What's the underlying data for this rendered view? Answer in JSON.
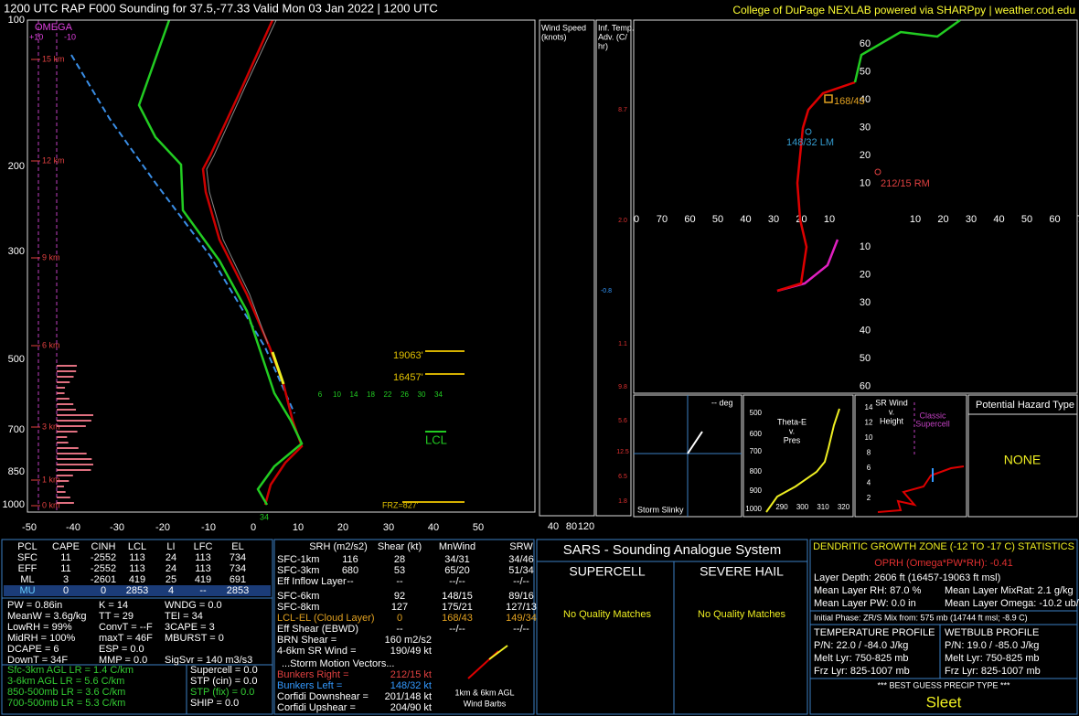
{
  "header": {
    "title": "1200 UTC RAP F000 Sounding for 37.5,-77.33  Valid  Mon 03 Jan 2022 | 1200 UTC",
    "credit": "College of DuPage NEXLAB powered via SHARPpy | weather.cod.edu"
  },
  "skewt": {
    "pressure_labels": [
      "100",
      "200",
      "300",
      "500",
      "700",
      "850",
      "1000"
    ],
    "temp_labels": [
      "-50",
      "-40",
      "-30",
      "-20",
      "-10",
      "0",
      "10",
      "20",
      "30",
      "40",
      "50"
    ],
    "height_labels": [
      "15 km",
      "12 km",
      "9 km",
      "6 km",
      "3 km",
      "1 km",
      "0 km"
    ],
    "omega": [
      "OMEGA",
      "+10",
      "-10"
    ],
    "mixing_ratio_labels": [
      "6",
      "10",
      "14",
      "18",
      "22",
      "26",
      "30",
      "34"
    ],
    "annotations": {
      "dgz_top": "19063'",
      "dgz_bottom": "16457'",
      "lcl": "LCL",
      "frz": "FRZ=827'",
      "sfc_wetbulb": "34"
    }
  },
  "wind_speed": {
    "title": [
      "Wind Speed",
      "(knots)"
    ],
    "ticks": [
      "40",
      "80",
      "120"
    ]
  },
  "inference": {
    "title": [
      "Inf. Temp.",
      "Adv. (C/",
      "hr)"
    ],
    "labels": [
      "8.7",
      "2.0",
      "-0.8",
      "1.1",
      "9.8",
      "5.6",
      "12.5",
      "6.5",
      "1.8"
    ]
  },
  "hodograph": {
    "ring_labels": [
      "60",
      "50",
      "40",
      "30",
      "20",
      "10"
    ],
    "lower_ring_labels": [
      "10",
      "20",
      "30",
      "40",
      "50",
      "60"
    ],
    "x_labels": [
      "0",
      "70",
      "60",
      "50",
      "40",
      "30",
      "20",
      "10",
      "10",
      "20",
      "30",
      "40",
      "50",
      "60",
      "70"
    ],
    "motions": {
      "mean": "168/43",
      "left": "148/32 LM",
      "right": "212/15 RM"
    }
  },
  "slinky": {
    "deg": "-- deg",
    "title": "Storm Slinky"
  },
  "theta": {
    "title": [
      "Theta-E",
      "v.",
      "Pres"
    ],
    "y_labels": [
      "500",
      "600",
      "700",
      "800",
      "900",
      "1000"
    ],
    "x_labels": [
      "290",
      "300",
      "310",
      "320"
    ]
  },
  "srwind": {
    "title": [
      "SR Wind",
      "v.",
      "Height"
    ],
    "note": [
      "Classic",
      "Supercell"
    ],
    "heights": [
      "14",
      "12",
      "10",
      "8",
      "6",
      "4",
      "2"
    ]
  },
  "hazard": {
    "title": "Potential Hazard Type",
    "value": "NONE"
  },
  "parcels": {
    "headers": [
      "PCL",
      "CAPE",
      "CINH",
      "LCL",
      "LI",
      "LFC",
      "EL"
    ],
    "rows": [
      [
        "SFC",
        "11",
        "-2552",
        "113",
        "24",
        "113",
        "734"
      ],
      [
        "EFF",
        "11",
        "-2552",
        "113",
        "24",
        "113",
        "734"
      ],
      [
        "ML",
        "3",
        "-2601",
        "419",
        "25",
        "419",
        "691"
      ],
      [
        "MU",
        "0",
        "0",
        "2853",
        "4",
        "--",
        "2853"
      ]
    ]
  },
  "indices": [
    [
      "PW = 0.86in",
      "K = 14",
      "WNDG = 0.0"
    ],
    [
      "MeanW = 3.6g/kg",
      "TT = 29",
      "TEI = 34"
    ],
    [
      "LowRH = 99%",
      "ConvT = --F",
      "3CAPE = 3"
    ],
    [
      "MidRH = 100%",
      "maxT = 46F",
      "MBURST = 0"
    ],
    [
      "DCAPE = 6",
      "ESP = 0.0"
    ],
    [
      "DownT = 34F",
      "MMP = 0.0",
      "SigSvr = 140 m3/s3"
    ]
  ],
  "lapse_rates": [
    "Sfc-3km AGL LR = 1.4 C/km",
    "3-6km AGL LR = 5.6 C/km",
    "850-500mb LR = 3.6 C/km",
    "700-500mb LR = 5.3 C/km"
  ],
  "composites": [
    "Supercell = 0.0",
    "STP (cin) = 0.0",
    "STP (fix) = 0.0",
    "SHIP = 0.0"
  ],
  "kinematics": {
    "headers": [
      "SRH (m2/s2)",
      "Shear (kt)",
      "MnWind",
      "SRW"
    ],
    "rows": [
      [
        "SFC-1km",
        "116",
        "28",
        "34/31",
        "34/46"
      ],
      [
        "SFC-3km",
        "680",
        "53",
        "65/20",
        "51/34"
      ],
      [
        "Eff Inflow Layer",
        "--",
        "--",
        "--/--",
        "--/--"
      ],
      [
        "SFC-6km",
        null,
        "92",
        "148/15",
        "89/16"
      ],
      [
        "SFC-8km",
        null,
        "127",
        "175/21",
        "127/13"
      ],
      [
        "LCL-EL (Cloud Layer)",
        null,
        "0",
        "168/43",
        "149/34"
      ],
      [
        "Eff Shear (EBWD)",
        null,
        "--",
        "--/--",
        "--/--"
      ]
    ],
    "pairs": [
      [
        "BRN Shear =",
        "160 m2/s2"
      ],
      [
        "4-6km SR Wind =",
        "190/49 kt"
      ]
    ],
    "motion_title": "...Storm Motion Vectors...",
    "motions": [
      [
        "Bunkers Right =",
        "212/15 kt"
      ],
      [
        "Bunkers Left =",
        "148/32 kt"
      ],
      [
        "Corfidi Downshear =",
        "201/148 kt"
      ],
      [
        "Corfidi Upshear =",
        "204/90 kt"
      ]
    ],
    "barb_caption": [
      "1km & 6km AGL",
      "Wind Barbs"
    ]
  },
  "sars": {
    "title": "SARS - Sounding Analogue System",
    "supercell": "SUPERCELL",
    "hail": "SEVERE HAIL",
    "supercell_matches": "No Quality Matches",
    "hail_matches": "No Quality Matches"
  },
  "dgz": {
    "title": "DENDRITIC GROWTH ZONE (-12 TO -17 C) STATISTICS",
    "oprh": "OPRH (Omega*PW*RH): -0.41",
    "depth": "Layer Depth: 2606 ft (16457-19063 ft msl)",
    "rh": "Mean Layer RH: 87.0 %",
    "mixrat": "Mean Layer MixRat: 2.1 g/kg",
    "pw": "Mean Layer PW: 0.0 in",
    "omega": "Mean Layer Omega: -10.2 ub/s",
    "phase": "Initial Phase: ZR/S Mix from: 575 mb (14744 ft msl; -8.9 C)",
    "temp_profile": [
      "TEMPERATURE PROFILE",
      "P/N: 22.0 / -84.0 J/kg",
      "Melt Lyr: 750-825 mb",
      "Frz Lyr: 825-1007 mb"
    ],
    "wetbulb_profile": [
      "WETBULB PROFILE",
      "P/N: 19.0 / -85.0 J/kg",
      "Melt Lyr: 750-825 mb",
      "Frz Lyr: 825-1007 mb"
    ],
    "precip_title": "*** BEST GUESS PRECIP TYPE ***",
    "precip": "Sleet"
  }
}
